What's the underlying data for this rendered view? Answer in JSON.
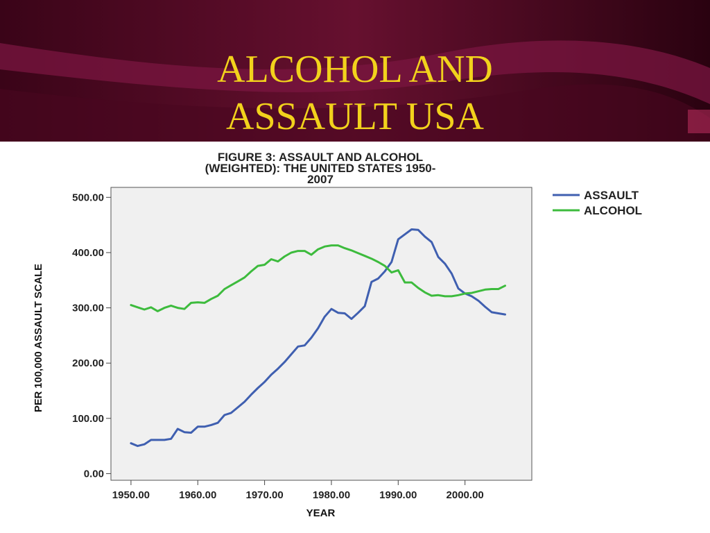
{
  "slide": {
    "title_lines": [
      "ALCOHOL AND",
      "ASSAULT USA"
    ],
    "colors": {
      "background": "#5a0a2a",
      "title": "#f2d21c"
    }
  },
  "chart_data": {
    "type": "line",
    "title": "FIGURE 3: ASSAULT AND ALCOHOL (WEIGHTED): THE UNITED STATES 1950-2007",
    "title_lines": [
      "FIGURE 3: ASSAULT AND ALCOHOL",
      "(WEIGHTED): THE UNITED STATES 1950-",
      "2007"
    ],
    "xlabel": "YEAR",
    "ylabel": "PER 100,000 ASSAULT SCALE",
    "xlim": [
      1947,
      2010
    ],
    "ylim": [
      -12,
      518
    ],
    "x_ticks": [
      1950,
      1960,
      1970,
      1980,
      1990,
      2000
    ],
    "x_tick_labels": [
      "1950.00",
      "1960.00",
      "1970.00",
      "1980.00",
      "1990.00",
      "2000.00"
    ],
    "y_ticks": [
      0,
      100,
      200,
      300,
      400,
      500
    ],
    "y_tick_labels": [
      "0.00",
      "100.00",
      "200.00",
      "300.00",
      "400.00",
      "500.00"
    ],
    "grid": false,
    "plot_background": "#f0f0f0",
    "legend_position": "outside-top-right",
    "x": [
      1950,
      1951,
      1952,
      1953,
      1954,
      1955,
      1956,
      1957,
      1958,
      1959,
      1960,
      1961,
      1962,
      1963,
      1964,
      1965,
      1966,
      1967,
      1968,
      1969,
      1970,
      1971,
      1972,
      1973,
      1974,
      1975,
      1976,
      1977,
      1978,
      1979,
      1980,
      1981,
      1982,
      1983,
      1984,
      1985,
      1986,
      1987,
      1988,
      1989,
      1990,
      1991,
      1992,
      1993,
      1994,
      1995,
      1996,
      1997,
      1998,
      1999,
      2000,
      2001,
      2002,
      2003,
      2004,
      2005,
      2006
    ],
    "series": [
      {
        "name": "ASSAULT",
        "color": "#3f5fb0",
        "values": [
          55,
          50,
          53,
          61,
          61,
          61,
          63,
          81,
          75,
          74,
          85,
          85,
          88,
          92,
          106,
          110,
          120,
          130,
          143,
          155,
          166,
          179,
          190,
          202,
          216,
          230,
          232,
          246,
          263,
          284,
          298,
          291,
          290,
          280,
          291,
          303,
          347,
          353,
          366,
          383,
          424,
          433,
          442,
          441,
          429,
          419,
          392,
          380,
          362,
          335,
          326,
          321,
          313,
          302,
          292,
          290,
          288
        ]
      },
      {
        "name": "ALCOHOL",
        "color": "#3dbb3d",
        "values": [
          305,
          301,
          297,
          301,
          294,
          300,
          304,
          300,
          298,
          309,
          310,
          309,
          316,
          322,
          334,
          341,
          348,
          355,
          366,
          376,
          378,
          388,
          384,
          393,
          400,
          403,
          403,
          396,
          406,
          411,
          413,
          413,
          408,
          404,
          399,
          394,
          389,
          383,
          376,
          364,
          368,
          346,
          346,
          336,
          328,
          322,
          323,
          321,
          321,
          323,
          326,
          327,
          330,
          333,
          334,
          334,
          340
        ]
      }
    ]
  }
}
